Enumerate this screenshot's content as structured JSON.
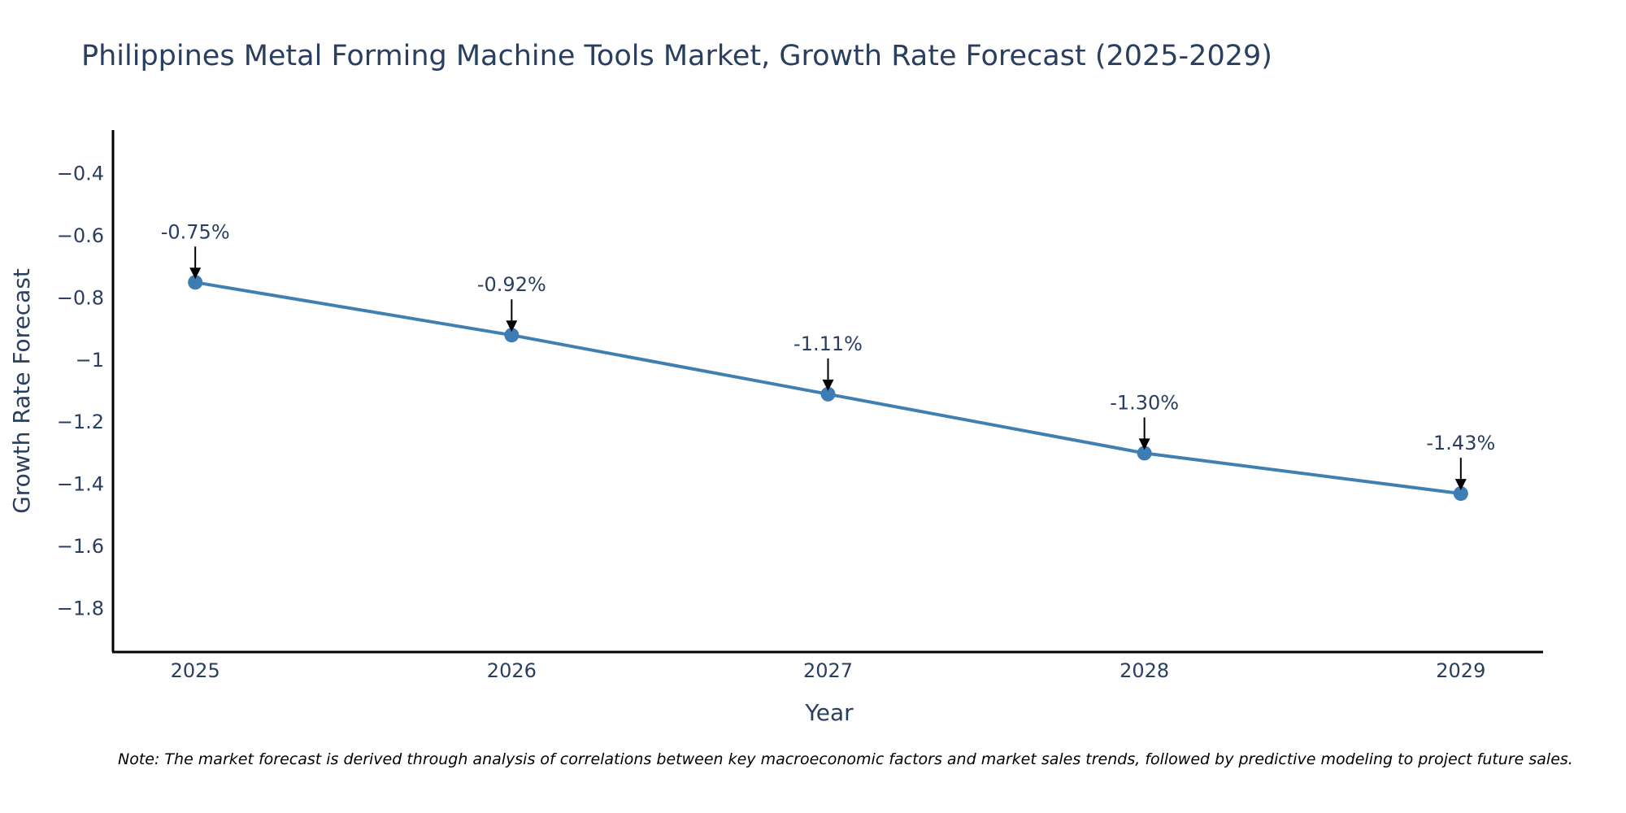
{
  "colors": {
    "line": "#4080b0",
    "marker": "#3d7db3",
    "text": "#2a3f5f",
    "axis": "#000000",
    "arrow": "#000000"
  },
  "chart_data": {
    "type": "line",
    "title": "Philippines Metal Forming Machine Tools Market, Growth Rate Forecast (2025-2029)",
    "xlabel": "Year",
    "ylabel": "Growth Rate Forecast",
    "x": [
      2025,
      2026,
      2027,
      2028,
      2029
    ],
    "x_tick_labels": [
      "2025",
      "2026",
      "2027",
      "2028",
      "2029"
    ],
    "values": [
      -0.75,
      -0.92,
      -1.11,
      -1.3,
      -1.43
    ],
    "data_labels": [
      "-0.75%",
      "-0.92%",
      "-1.11%",
      "-1.30%",
      "-1.43%"
    ],
    "ylim": [
      -1.94,
      -0.26
    ],
    "xlim": [
      2024.74,
      2029.26
    ],
    "y_ticks": [
      -0.4,
      -0.6,
      -0.8,
      -1,
      -1.2,
      -1.4,
      -1.6,
      -1.8
    ],
    "y_tick_labels": [
      "−0.4",
      "−0.6",
      "−0.8",
      "−1",
      "−1.2",
      "−1.4",
      "−1.6",
      "−1.8"
    ],
    "grid": false,
    "legend": "none"
  },
  "note": "Note: The market forecast is derived through analysis of correlations between key macroeconomic factors and market sales trends, followed by predictive modeling to project future sales."
}
